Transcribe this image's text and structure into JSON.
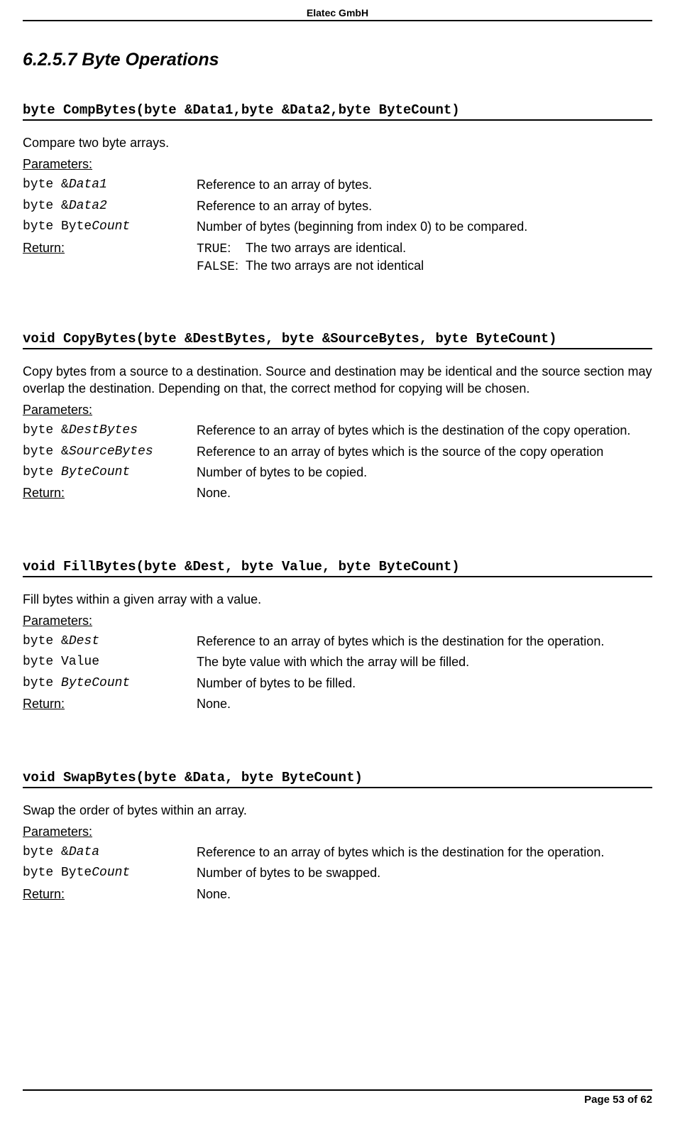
{
  "header_company": "Elatec GmbH",
  "section_title": "6.2.5.7  Byte Operations",
  "footer_text": "Page 53 of 62",
  "funcs": {
    "comp": {
      "sig": "byte CompBytes(byte &Data1,byte &Data2,byte ByteCount)",
      "desc": "Compare two byte arrays.",
      "params_label": "Parameters:",
      "p1_name": "byte &",
      "p1_italic": "Data1",
      "p1_desc": "Reference to an array of bytes.",
      "p2_name": "byte &",
      "p2_italic": "Data2",
      "p2_desc": "Reference to an array of bytes.",
      "p3_name_pre": "byte Byte",
      "p3_italic": "Count",
      "p3_desc": "Number of bytes (beginning from index 0) to be compared.",
      "return_label": "Return:",
      "ret_true_key": "TRUE",
      "ret_true_colon": ":",
      "ret_true_val": "The two arrays are identical.",
      "ret_false_key": "FALSE",
      "ret_false_colon": ":",
      "ret_false_val": "The two arrays are not identical"
    },
    "copy": {
      "sig": "void CopyBytes(byte &DestBytes, byte &SourceBytes, byte ByteCount)",
      "desc": "Copy bytes from a source to a destination. Source and destination may be identical and the source section may overlap the destination. Depending on that, the correct method for copying will be chosen.",
      "params_label": "Parameters:",
      "p1_name": "byte &",
      "p1_italic": "DestBytes",
      "p1_desc": "Reference to an array of bytes which is the destination of the copy operation.",
      "p2_name": "byte &",
      "p2_italic": "SourceBytes",
      "p2_desc": "Reference to an array of bytes which is the source of the copy operation",
      "p3_name": "byte ",
      "p3_italic": "ByteCount",
      "p3_desc": "Number of bytes to be copied.",
      "return_label": "Return:",
      "return_val": "None."
    },
    "fill": {
      "sig": "void FillBytes(byte &Dest, byte Value, byte ByteCount)",
      "desc": "Fill bytes within a given array with a value.",
      "params_label": "Parameters:",
      "p1_name": "byte &",
      "p1_italic": "Dest",
      "p1_desc": "Reference to an array of bytes which is the destination for the operation.",
      "p2_name": "byte Value",
      "p2_desc": "The byte value with which the array will be filled.",
      "p3_name": "byte ",
      "p3_italic": "ByteCount",
      "p3_desc": "Number of bytes to be filled.",
      "return_label": "Return:",
      "return_val": "None."
    },
    "swap": {
      "sig": "void SwapBytes(byte &Data, byte ByteCount)",
      "desc": "Swap the order of bytes within an array.",
      "params_label": "Parameters:",
      "p1_name": "byte &",
      "p1_italic": "Data",
      "p1_desc": "Reference to an array of bytes which is the destination for the operation.",
      "p2_name_pre": "byte Byte",
      "p2_italic": "Count",
      "p2_desc": "Number of bytes to be swapped.",
      "return_label": "Return:",
      "return_val": "None."
    }
  }
}
